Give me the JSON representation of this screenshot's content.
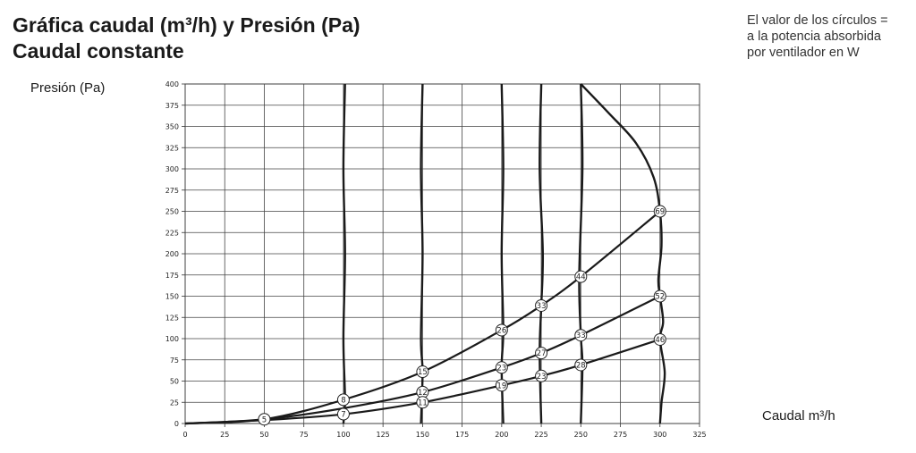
{
  "header": {
    "title_line1": "Gráfica caudal (m³/h) y Presión (Pa)",
    "title_line2": "Caudal constante"
  },
  "note": {
    "line1": "El valor de los círculos =",
    "line2": "a la potencia absorbida",
    "line3": "por ventilador en W"
  },
  "chart_data": {
    "type": "line",
    "title": "Gráfica caudal (m³/h) y Presión (Pa)",
    "subtitle": "Caudal constante",
    "xlabel": "Caudal m³/h",
    "ylabel": "Presión (Pa)",
    "xlim": [
      0,
      325
    ],
    "ylim": [
      0,
      400
    ],
    "xticks": [
      0,
      25,
      50,
      75,
      100,
      125,
      150,
      175,
      200,
      225,
      250,
      275,
      300,
      325
    ],
    "yticks": [
      0,
      25,
      50,
      75,
      100,
      125,
      150,
      175,
      200,
      225,
      250,
      275,
      300,
      325,
      350,
      375,
      400
    ],
    "grid": true,
    "system_curves": [
      {
        "points": [
          [
            0,
            0
          ],
          [
            50,
            5
          ],
          [
            100,
            28
          ],
          [
            150,
            61
          ],
          [
            200,
            110
          ],
          [
            225,
            139
          ],
          [
            250,
            173
          ],
          [
            300,
            250
          ]
        ],
        "labels": [
          [
            50,
            5,
            "5"
          ],
          [
            100,
            28,
            "8"
          ],
          [
            150,
            61,
            "15"
          ],
          [
            200,
            110,
            "26"
          ],
          [
            225,
            139,
            "33"
          ],
          [
            250,
            173,
            "44"
          ],
          [
            300,
            250,
            "69"
          ]
        ]
      },
      {
        "points": [
          [
            0,
            0
          ],
          [
            50,
            5
          ],
          [
            100,
            18
          ],
          [
            150,
            37
          ],
          [
            200,
            66
          ],
          [
            225,
            83
          ],
          [
            250,
            104
          ],
          [
            300,
            150
          ]
        ],
        "labels": [
          [
            150,
            37,
            "12"
          ],
          [
            200,
            66,
            "23"
          ],
          [
            225,
            83,
            "27"
          ],
          [
            250,
            104,
            "33"
          ],
          [
            300,
            150,
            "52"
          ]
        ]
      },
      {
        "points": [
          [
            0,
            0
          ],
          [
            50,
            4
          ],
          [
            100,
            11
          ],
          [
            150,
            25
          ],
          [
            200,
            45
          ],
          [
            225,
            56
          ],
          [
            250,
            69
          ],
          [
            300,
            99
          ]
        ],
        "labels": [
          [
            100,
            11,
            "7"
          ],
          [
            150,
            25,
            "11"
          ],
          [
            200,
            45,
            "19"
          ],
          [
            225,
            56,
            "23"
          ],
          [
            250,
            69,
            "28"
          ],
          [
            300,
            99,
            "46"
          ]
        ]
      }
    ],
    "constant_flow_lines": [
      {
        "points": [
          [
            101,
            400
          ],
          [
            100,
            300
          ],
          [
            101,
            200
          ],
          [
            100,
            100
          ],
          [
            101,
            28
          ],
          [
            100,
            0
          ]
        ]
      },
      {
        "points": [
          [
            150,
            400
          ],
          [
            149,
            300
          ],
          [
            150,
            200
          ],
          [
            149,
            100
          ],
          [
            150,
            61
          ],
          [
            149,
            0
          ]
        ]
      },
      {
        "points": [
          [
            200,
            400
          ],
          [
            201,
            300
          ],
          [
            200,
            200
          ],
          [
            201,
            110
          ],
          [
            200,
            66
          ],
          [
            201,
            0
          ]
        ]
      },
      {
        "points": [
          [
            225,
            400
          ],
          [
            224,
            300
          ],
          [
            226,
            200
          ],
          [
            225,
            139
          ],
          [
            224,
            83
          ],
          [
            225,
            0
          ]
        ]
      },
      {
        "points": [
          [
            250,
            400
          ],
          [
            251,
            300
          ],
          [
            249,
            173
          ],
          [
            250,
            104
          ],
          [
            251,
            69
          ],
          [
            250,
            0
          ]
        ]
      },
      {
        "points": [
          [
            250,
            400
          ],
          [
            268,
            365
          ],
          [
            285,
            330
          ],
          [
            296,
            290
          ],
          [
            300,
            250
          ],
          [
            301,
            210
          ],
          [
            299,
            170
          ],
          [
            300,
            150
          ],
          [
            302,
            120
          ],
          [
            300,
            99
          ],
          [
            303,
            60
          ],
          [
            301,
            25
          ],
          [
            300,
            0
          ]
        ]
      }
    ]
  }
}
